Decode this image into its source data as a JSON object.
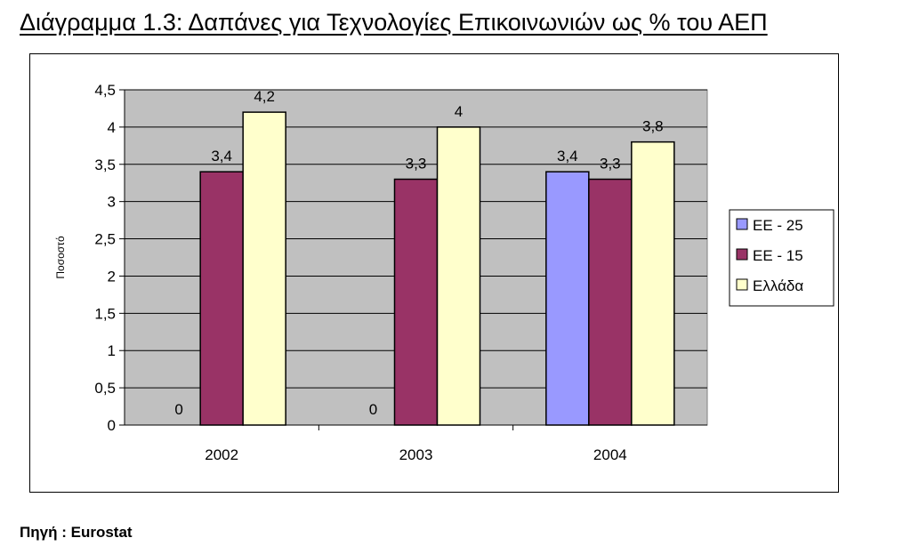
{
  "title": "Διάγραμμα 1.3: Δαπάνες για Τεχνολογίες Επικοινωνιών ως % του ΑΕΠ",
  "source": "Πηγή : Eurostat",
  "chart_data": {
    "type": "bar",
    "title": "Διάγραμμα 1.3: Δαπάνες για Τεχνολογίες Επικοινωνιών ως % του ΑΕΠ",
    "xlabel": "",
    "ylabel": "Ποσοστό",
    "ylim": [
      0,
      4.5
    ],
    "ytick_step": 0.5,
    "ytick_labels": [
      "0",
      "0,5",
      "1",
      "1,5",
      "2",
      "2,5",
      "3",
      "3,5",
      "4",
      "4,5"
    ],
    "categories": [
      "2002",
      "2003",
      "2004"
    ],
    "series": [
      {
        "name": "ΕΕ - 25",
        "values": [
          0,
          0,
          3.4
        ],
        "labels": [
          "0",
          "0",
          "3,4"
        ],
        "color": "#9999ff"
      },
      {
        "name": "ΕΕ - 15",
        "values": [
          3.4,
          3.3,
          3.3
        ],
        "labels": [
          "3,4",
          "3,3",
          "3,3"
        ],
        "color": "#993366"
      },
      {
        "name": "Ελλάδα",
        "values": [
          4.2,
          4.0,
          3.8
        ],
        "labels": [
          "4,2",
          "4",
          "3,8"
        ],
        "color": "#ffffcc"
      }
    ],
    "plot_background": "#c0c0c0",
    "grid": true,
    "legend_position": "right"
  }
}
